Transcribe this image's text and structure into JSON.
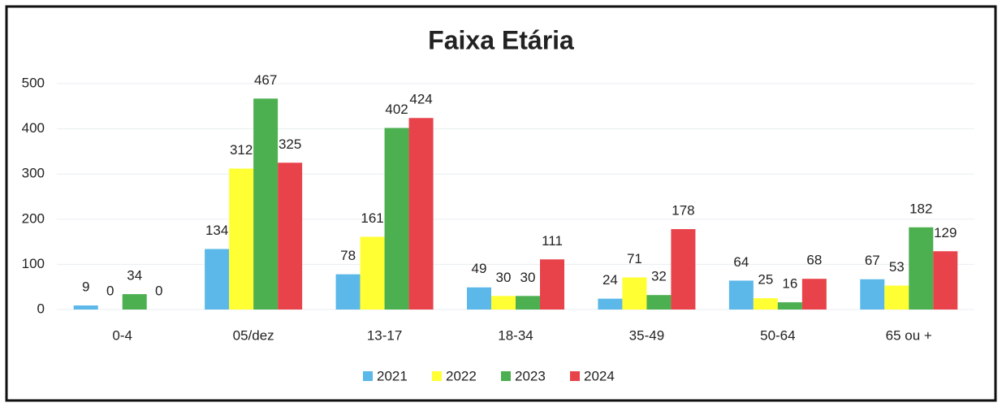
{
  "chart_data": {
    "type": "bar",
    "title": "Faixa Etária",
    "categories": [
      "0-4",
      "05/dez",
      "13-17",
      "18-34",
      "35-49",
      "50-64",
      "65 ou +"
    ],
    "series": [
      {
        "name": "2021",
        "color": "#5bb8e8",
        "values": [
          9,
          134,
          78,
          49,
          24,
          64,
          67
        ]
      },
      {
        "name": "2022",
        "color": "#ffff33",
        "values": [
          0,
          312,
          161,
          30,
          71,
          25,
          53
        ]
      },
      {
        "name": "2023",
        "color": "#4caf50",
        "values": [
          34,
          467,
          402,
          30,
          32,
          16,
          182
        ]
      },
      {
        "name": "2024",
        "color": "#e8434a",
        "values": [
          0,
          325,
          424,
          111,
          178,
          68,
          129
        ]
      }
    ],
    "ylim": [
      0,
      500
    ],
    "yticks": [
      0,
      100,
      200,
      300,
      400,
      500
    ],
    "grid": true,
    "legend": "bottom"
  }
}
